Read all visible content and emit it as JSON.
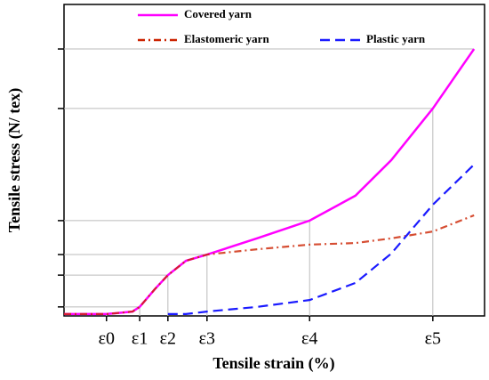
{
  "chart_data": {
    "type": "line",
    "x_label": "Tensile strain (%)",
    "y_label": "Tensile stress (N/ tex)",
    "x": [
      0,
      10.1,
      16.3,
      18.0,
      21.6,
      24.7,
      29.0,
      34.0,
      45.9,
      58.4,
      69.3,
      77.8,
      87.7,
      97.5
    ],
    "series": [
      {
        "name": "Covered yarn",
        "color": "#ff00ff",
        "dash": "solid",
        "values": [
          0.6,
          0.6,
          1.4,
          2.9,
          8.6,
          13.1,
          17.7,
          19.7,
          24.9,
          30.6,
          38.6,
          50,
          66.6,
          85.7
        ]
      },
      {
        "name": "Elastomeric yarn",
        "color": "#cc2200",
        "dash": "dashdot",
        "values": [
          0.6,
          0.6,
          1.4,
          2.9,
          8.6,
          13.1,
          17.7,
          19.7,
          21.4,
          22.9,
          23.4,
          24.9,
          27.1,
          32.3
        ]
      },
      {
        "name": "Plastic yarn",
        "color": "#1a1aff",
        "dash": "dashed",
        "values": [
          null,
          null,
          null,
          null,
          null,
          0.6,
          0.6,
          1.4,
          2.9,
          5.1,
          10.6,
          20,
          35.7,
          48.6
        ]
      }
    ],
    "xlim": [
      0,
      100
    ],
    "ylim": [
      0,
      100
    ],
    "xticks": [
      {
        "value": 10.1,
        "label": "ε0"
      },
      {
        "value": 18.0,
        "label": "ε1"
      },
      {
        "value": 24.7,
        "label": "ε2"
      },
      {
        "value": 34.0,
        "label": "ε3"
      },
      {
        "value": 58.4,
        "label": "ε4"
      },
      {
        "value": 87.7,
        "label": "ε5"
      }
    ],
    "yticks": [
      2.9,
      13.1,
      19.7,
      30.6,
      66.6,
      85.7
    ]
  }
}
